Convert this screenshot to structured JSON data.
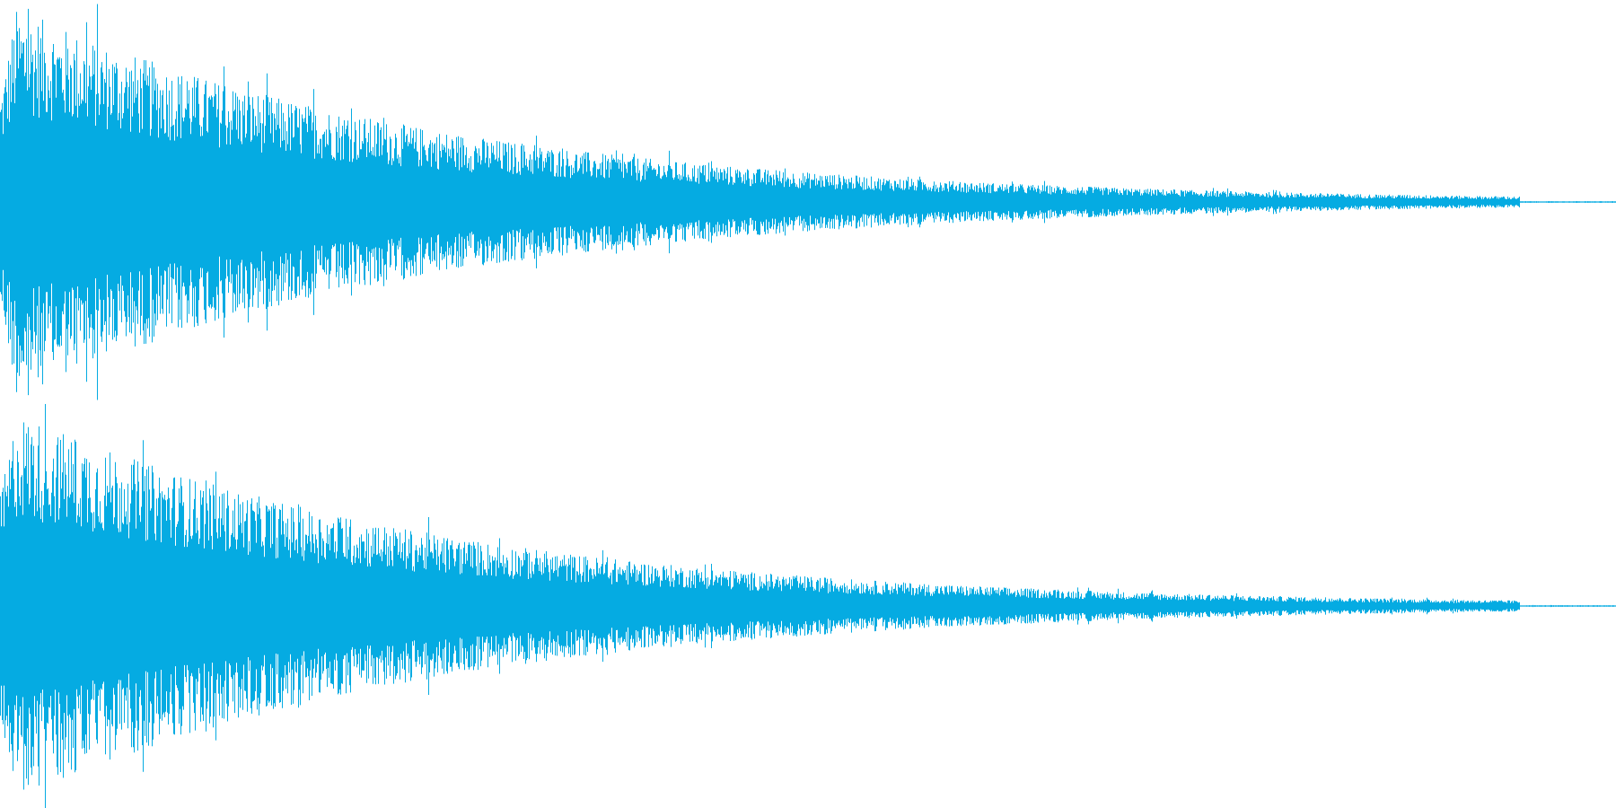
{
  "waveform": {
    "color": "#05abe2",
    "background": "#ffffff",
    "channel_count": 2,
    "channels": [
      {
        "peak_amplitude": 1.0,
        "decay_end_fraction": 0.94
      },
      {
        "peak_amplitude": 1.0,
        "decay_end_fraction": 0.94
      }
    ]
  }
}
